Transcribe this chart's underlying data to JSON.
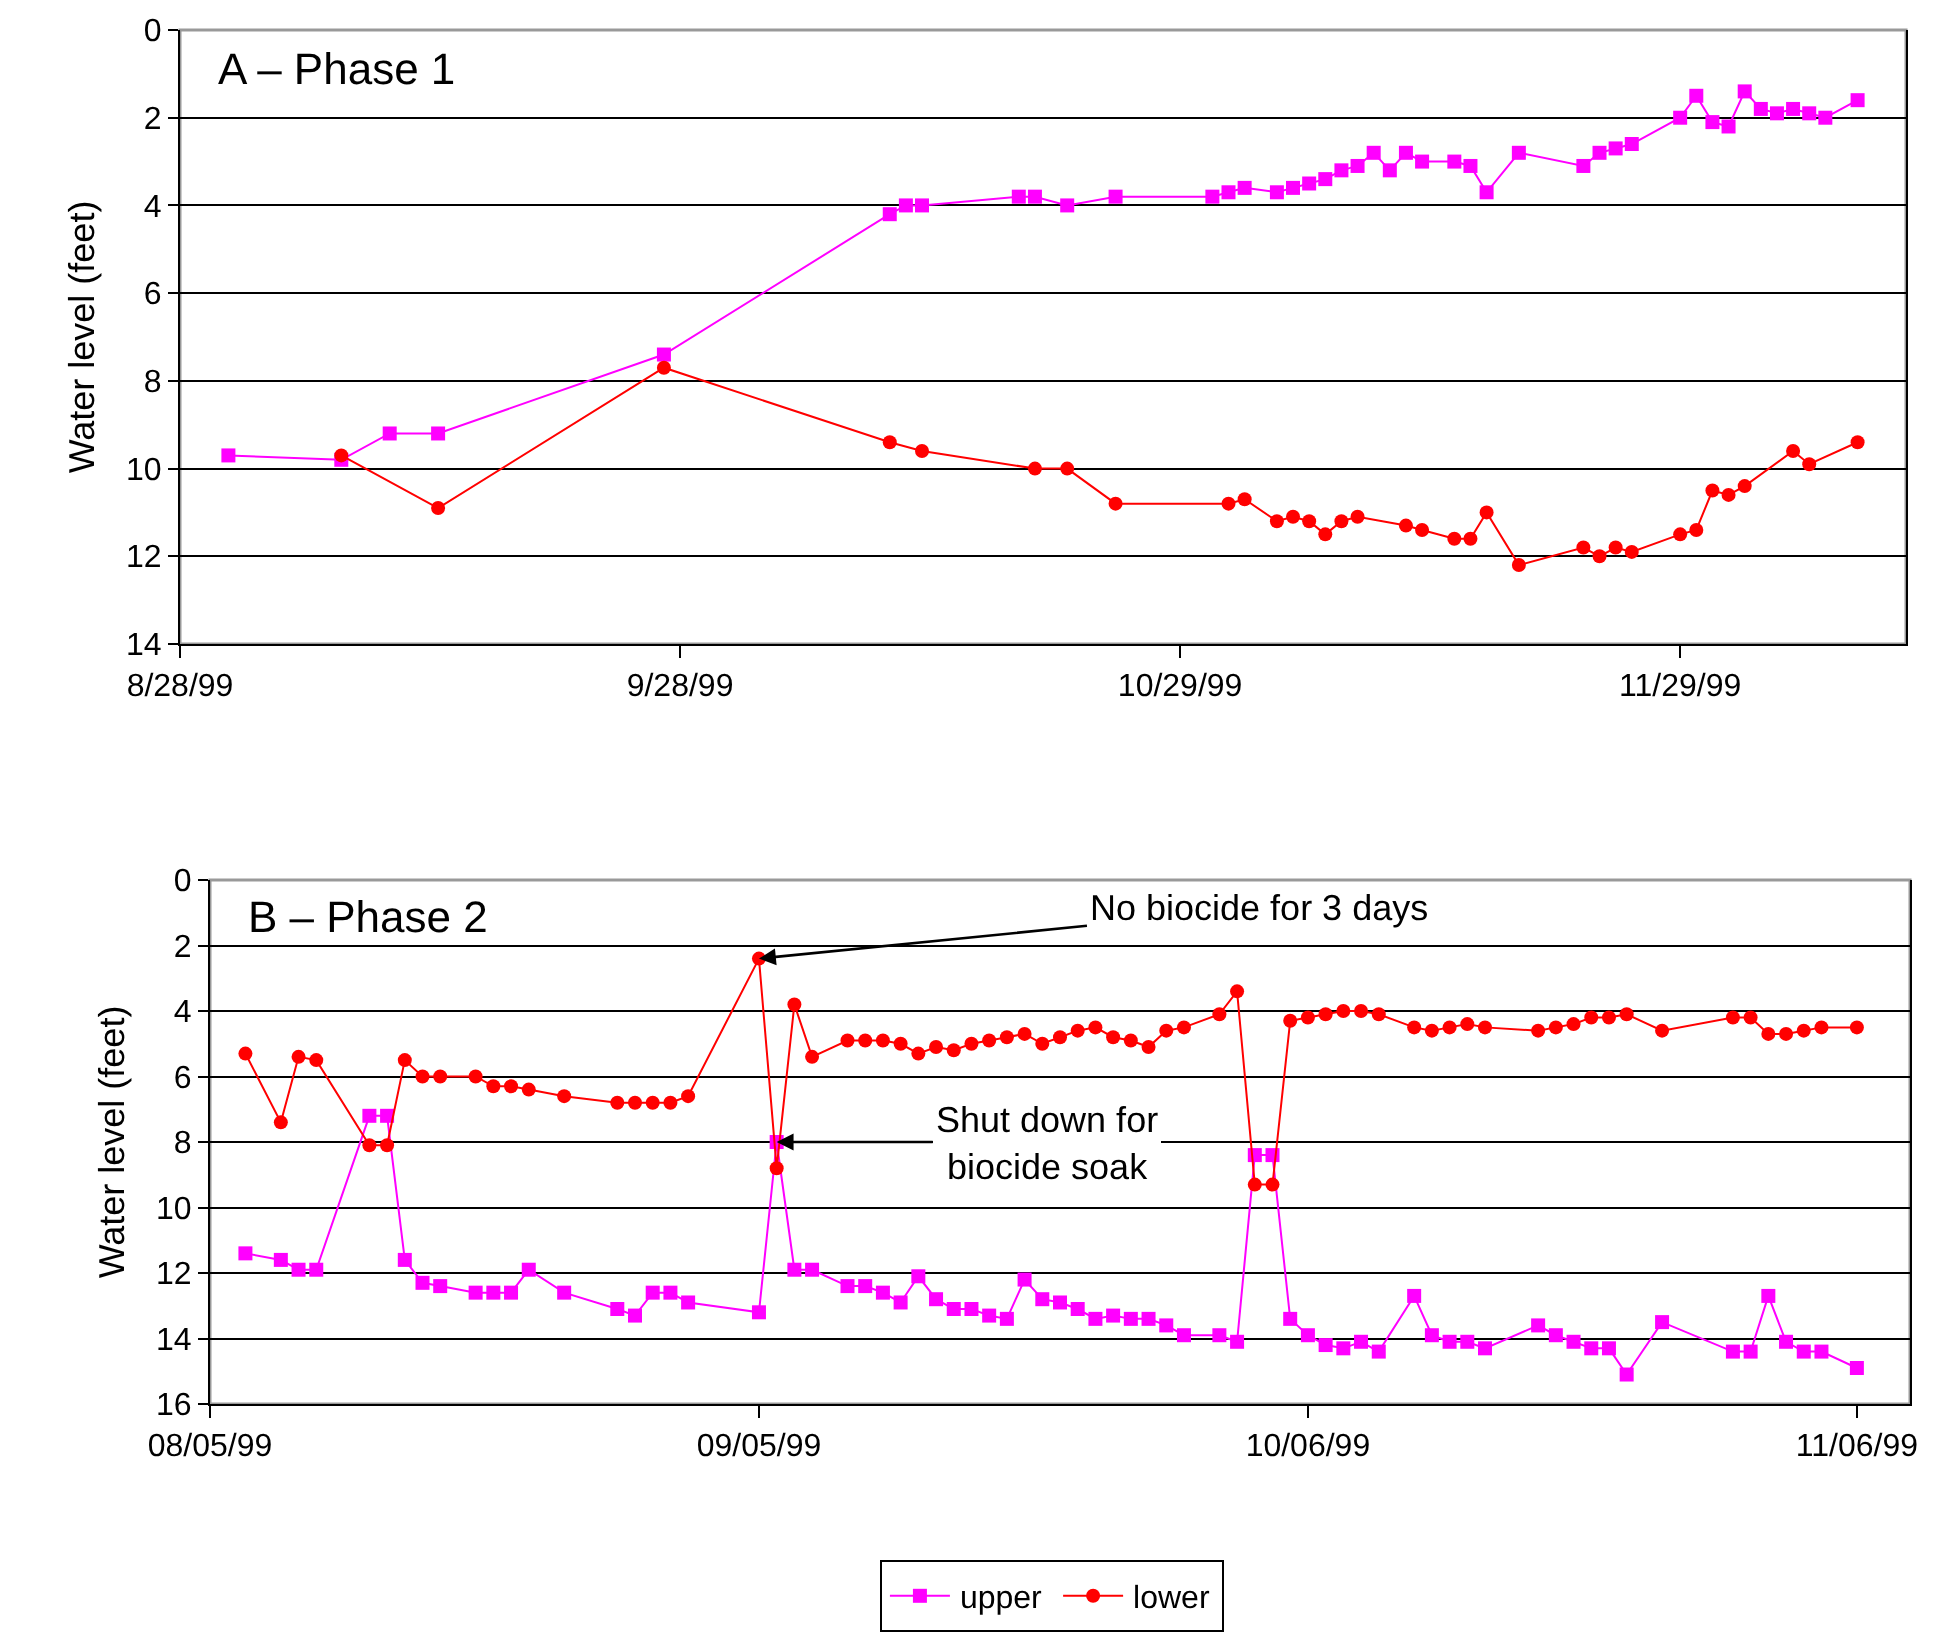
{
  "chart_data": [
    {
      "type": "line",
      "title": "A – Phase 1",
      "ylabel": "Water level (feet)",
      "xlim": [
        "1999-08-28",
        "1999-12-13"
      ],
      "xticks": [
        {
          "value": "1999-08-28",
          "label": "8/28/99"
        },
        {
          "value": "1999-09-28",
          "label": "9/28/99"
        },
        {
          "value": "1999-10-29",
          "label": "10/29/99"
        },
        {
          "value": "1999-11-29",
          "label": "11/29/99"
        }
      ],
      "ylim": [
        14,
        0
      ],
      "yticks": [
        0,
        2,
        4,
        6,
        8,
        10,
        12,
        14
      ],
      "grid": "y",
      "legend": "bottom",
      "line_style": "solid",
      "series": [
        {
          "name": "upper",
          "color": "#ff00ff",
          "marker": "square",
          "x": [
            "1999-08-31",
            "1999-09-07",
            "1999-09-10",
            "1999-09-13",
            "1999-09-27",
            "1999-10-11",
            "1999-10-12",
            "1999-10-13",
            "1999-10-19",
            "1999-10-20",
            "1999-10-22",
            "1999-10-25",
            "1999-10-31",
            "1999-11-01",
            "1999-11-02",
            "1999-11-04",
            "1999-11-05",
            "1999-11-06",
            "1999-11-07",
            "1999-11-08",
            "1999-11-09",
            "1999-11-10",
            "1999-11-11",
            "1999-11-12",
            "1999-11-13",
            "1999-11-15",
            "1999-11-16",
            "1999-11-17",
            "1999-11-19",
            "1999-11-23",
            "1999-11-24",
            "1999-11-25",
            "1999-11-26",
            "1999-11-29",
            "1999-11-30",
            "1999-12-01",
            "1999-12-02",
            "1999-12-03",
            "1999-12-04",
            "1999-12-05",
            "1999-12-06",
            "1999-12-07",
            "1999-12-08",
            "1999-12-10"
          ],
          "values": [
            9.7,
            9.8,
            9.2,
            9.2,
            7.4,
            4.2,
            4.0,
            4.0,
            3.8,
            3.8,
            4.0,
            3.8,
            3.8,
            3.7,
            3.6,
            3.7,
            3.6,
            3.5,
            3.4,
            3.2,
            3.1,
            2.8,
            3.2,
            2.8,
            3.0,
            3.0,
            3.1,
            3.7,
            2.8,
            3.1,
            2.8,
            2.7,
            2.6,
            2.0,
            1.5,
            2.1,
            2.2,
            1.4,
            1.8,
            1.9,
            1.8,
            1.9,
            2.0,
            1.6
          ]
        },
        {
          "name": "lower",
          "color": "#ff0000",
          "marker": "circle",
          "x": [
            "1999-09-07",
            "1999-09-13",
            "1999-09-27",
            "1999-10-11",
            "1999-10-13",
            "1999-10-20",
            "1999-10-22",
            "1999-10-25",
            "1999-11-01",
            "1999-11-02",
            "1999-11-04",
            "1999-11-05",
            "1999-11-06",
            "1999-11-07",
            "1999-11-08",
            "1999-11-09",
            "1999-11-12",
            "1999-11-13",
            "1999-11-15",
            "1999-11-16",
            "1999-11-17",
            "1999-11-19",
            "1999-11-23",
            "1999-11-24",
            "1999-11-25",
            "1999-11-26",
            "1999-11-29",
            "1999-11-30",
            "1999-12-01",
            "1999-12-02",
            "1999-12-03",
            "1999-12-06",
            "1999-12-07",
            "1999-12-10"
          ],
          "values": [
            9.7,
            10.9,
            7.7,
            9.4,
            9.6,
            10.0,
            10.0,
            10.8,
            10.8,
            10.7,
            11.2,
            11.1,
            11.2,
            11.5,
            11.2,
            11.1,
            11.3,
            11.4,
            11.6,
            11.6,
            11.0,
            12.2,
            11.8,
            12.0,
            11.8,
            11.9,
            11.5,
            11.4,
            10.5,
            10.6,
            10.4,
            9.6,
            9.9,
            9.4
          ]
        }
      ]
    },
    {
      "type": "line",
      "title": "B – Phase 2",
      "ylabel": "Water level (feet)",
      "x": [
        "1999-08-07",
        "1999-08-09",
        "1999-08-10",
        "1999-08-11",
        "1999-08-14",
        "1999-08-15",
        "1999-08-16",
        "1999-08-17",
        "1999-08-18",
        "1999-08-20",
        "1999-08-21",
        "1999-08-22",
        "1999-08-23",
        "1999-08-25",
        "1999-08-28",
        "1999-08-29",
        "1999-08-30",
        "1999-08-31",
        "1999-09-01",
        "1999-09-05",
        "1999-09-06",
        "1999-09-07",
        "1999-09-08",
        "1999-09-10",
        "1999-09-11",
        "1999-09-12",
        "1999-09-13",
        "1999-09-14",
        "1999-09-15",
        "1999-09-16",
        "1999-09-17",
        "1999-09-18",
        "1999-09-19",
        "1999-09-20",
        "1999-09-21",
        "1999-09-22",
        "1999-09-23",
        "1999-09-24",
        "1999-09-25",
        "1999-09-26",
        "1999-09-27",
        "1999-09-28",
        "1999-09-29",
        "1999-10-01",
        "1999-10-02",
        "1999-10-03",
        "1999-10-04",
        "1999-10-05",
        "1999-10-06",
        "1999-10-07",
        "1999-10-08",
        "1999-10-09",
        "1999-10-10",
        "1999-10-12",
        "1999-10-13",
        "1999-10-14",
        "1999-10-15",
        "1999-10-16",
        "1999-10-19",
        "1999-10-20",
        "1999-10-21",
        "1999-10-22",
        "1999-10-23",
        "1999-10-24",
        "1999-10-26",
        "1999-10-30",
        "1999-10-31",
        "1999-11-01",
        "1999-11-02",
        "1999-11-03",
        "1999-11-04",
        "1999-11-06"
      ],
      "xlim": [
        "1999-08-05",
        "1999-11-09"
      ],
      "xticks": [
        {
          "value": "1999-08-05",
          "label": "08/05/99"
        },
        {
          "value": "1999-09-05",
          "label": "09/05/99"
        },
        {
          "value": "1999-10-06",
          "label": "10/06/99"
        },
        {
          "value": "1999-11-06",
          "label": "11/06/99"
        }
      ],
      "ylim": [
        16,
        0
      ],
      "yticks": [
        0,
        2,
        4,
        6,
        8,
        10,
        12,
        14,
        16
      ],
      "grid": "y",
      "legend": "bottom",
      "line_style": "solid",
      "series": [
        {
          "name": "upper",
          "color": "#ff00ff",
          "marker": "square",
          "values": [
            11.4,
            11.6,
            11.9,
            11.9,
            7.2,
            7.2,
            11.6,
            12.3,
            12.4,
            12.6,
            12.6,
            12.6,
            11.9,
            12.6,
            13.1,
            13.3,
            12.6,
            12.6,
            12.9,
            13.2,
            8.0,
            11.9,
            11.9,
            12.4,
            12.4,
            12.6,
            12.9,
            12.1,
            12.8,
            13.1,
            13.1,
            13.3,
            13.4,
            12.2,
            12.8,
            12.9,
            13.1,
            13.4,
            13.3,
            13.4,
            13.4,
            13.6,
            13.9,
            13.9,
            14.1,
            8.4,
            8.4,
            13.4,
            13.9,
            14.2,
            14.3,
            14.1,
            14.4,
            12.7,
            13.9,
            14.1,
            14.1,
            14.3,
            13.6,
            13.9,
            14.1,
            14.3,
            14.3,
            15.1,
            13.5,
            14.4,
            14.4,
            12.7,
            14.1,
            14.4,
            14.4,
            14.9
          ]
        },
        {
          "name": "lower",
          "color": "#ff0000",
          "marker": "circle",
          "values": [
            5.3,
            7.4,
            5.4,
            5.5,
            8.1,
            8.1,
            5.5,
            6.0,
            6.0,
            6.0,
            6.3,
            6.3,
            6.4,
            6.6,
            6.8,
            6.8,
            6.8,
            6.8,
            6.6,
            2.4,
            8.8,
            3.8,
            5.4,
            4.9,
            4.9,
            4.9,
            5.0,
            5.3,
            5.1,
            5.2,
            5.0,
            4.9,
            4.8,
            4.7,
            5.0,
            4.8,
            4.6,
            4.5,
            4.8,
            4.9,
            5.1,
            4.6,
            4.5,
            4.1,
            3.4,
            9.3,
            9.3,
            4.3,
            4.2,
            4.1,
            4.0,
            4.0,
            4.1,
            4.5,
            4.6,
            4.5,
            4.4,
            4.5,
            4.6,
            4.5,
            4.4,
            4.2,
            4.2,
            4.1,
            4.6,
            4.2,
            4.2,
            4.7,
            4.7,
            4.6,
            4.5,
            4.5
          ]
        }
      ],
      "annotations": [
        {
          "text": "No biocide for 3 days",
          "x": "1999-09-05",
          "y": 2.4
        },
        {
          "text": "Shut down for\nbiocide soak",
          "x": "1999-09-06",
          "y": 8.0
        }
      ]
    }
  ]
}
